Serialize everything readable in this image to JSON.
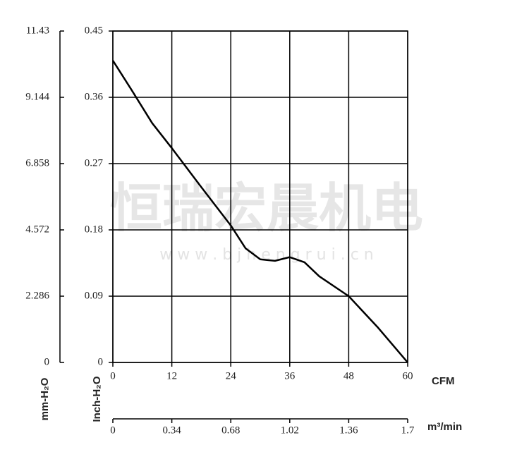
{
  "chart_data": {
    "type": "line",
    "x": [
      0,
      4,
      8,
      12,
      18,
      24,
      27,
      30,
      33,
      36,
      39,
      42,
      48,
      54,
      60
    ],
    "series": [
      {
        "color": "#000000",
        "values": [
          0.41,
          0.368,
          0.325,
          0.291,
          0.238,
          0.186,
          0.155,
          0.14,
          0.138,
          0.143,
          0.136,
          0.117,
          0.09,
          0.047,
          0
        ]
      }
    ],
    "xlim": [
      0,
      60
    ],
    "xticks": [
      0,
      12,
      24,
      36,
      48,
      60
    ],
    "xlabel": "CFM",
    "ylim": [
      0,
      0.45
    ],
    "yticks": [
      0,
      0.09,
      0.18,
      0.27,
      0.36,
      0.45
    ],
    "ylabel": "Inch-H₂O",
    "y2lim": [
      0,
      11.43
    ],
    "y2ticks": [
      0,
      2.286,
      4.572,
      6.858,
      9.144,
      11.43
    ],
    "y2label": "mm-H₂O",
    "x2lim": [
      0,
      1.7
    ],
    "x2ticks": [
      0,
      0.34,
      0.68,
      1.02,
      1.36,
      1.7
    ],
    "x2label": "m³/min",
    "grid": true,
    "watermark": "恒瑞宏晨机电",
    "watermark_url": "w w w . b j h e n g r u i . c n"
  }
}
